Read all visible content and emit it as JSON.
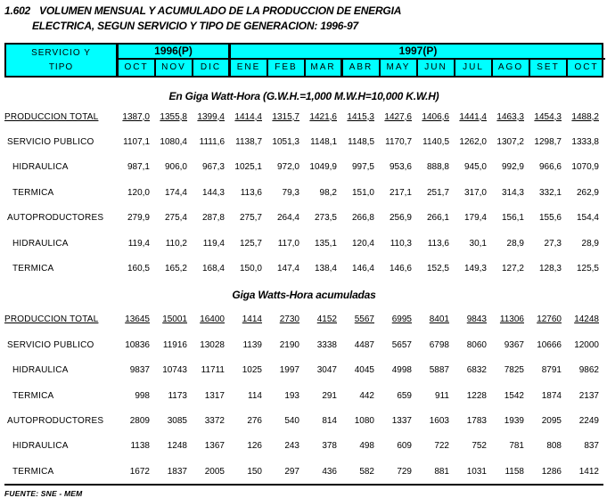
{
  "title": {
    "number": "1.602",
    "line1": "VOLUMEN MENSUAL Y ACUMULADO DE LA PRODUCCION DE ENERGIA",
    "line2": "ELECTRICA, SEGUN SERVICIO Y TIPO DE GENERACION: 1996-97"
  },
  "colors": {
    "header_bg": "#00FFFF",
    "border": "#000000",
    "text": "#000000"
  },
  "header": {
    "row_label_line1": "SERVICIO Y",
    "row_label_line2": "TIPO",
    "year_groups": [
      {
        "label": "1996(P)",
        "span": 3
      },
      {
        "label": "1997(P)",
        "span": 10
      }
    ],
    "months": [
      "OCT",
      "NOV",
      "DIC",
      "ENE",
      "FEB",
      "MAR",
      "ABR",
      "MAY",
      "JUN",
      "JUL",
      "AGO",
      "SET",
      "OCT"
    ],
    "thick_divider_after_month_index": [
      2,
      5
    ]
  },
  "sections": [
    {
      "title": "En Giga Watt-Hora (G.W.H.=1,000 M.W.H=10,000 K.W.H)",
      "rows": [
        {
          "label": "PRODUCCION TOTAL",
          "indent": 0,
          "underline": true,
          "values": [
            "1387,0",
            "1355,8",
            "1399,4",
            "1414,4",
            "1315,7",
            "1421,6",
            "1415,3",
            "1427,6",
            "1406,6",
            "1441,4",
            "1463,3",
            "1454,3",
            "1488,2"
          ]
        },
        {
          "label": "SERVICIO PUBLICO",
          "indent": 1,
          "underline": false,
          "values": [
            "1107,1",
            "1080,4",
            "1111,6",
            "1138,7",
            "1051,3",
            "1148,1",
            "1148,5",
            "1170,7",
            "1140,5",
            "1262,0",
            "1307,2",
            "1298,7",
            "1333,8"
          ]
        },
        {
          "label": "HIDRAULICA",
          "indent": 2,
          "underline": false,
          "values": [
            "987,1",
            "906,0",
            "967,3",
            "1025,1",
            "972,0",
            "1049,9",
            "997,5",
            "953,6",
            "888,8",
            "945,0",
            "992,9",
            "966,6",
            "1070,9"
          ]
        },
        {
          "label": "TERMICA",
          "indent": 2,
          "underline": false,
          "values": [
            "120,0",
            "174,4",
            "144,3",
            "113,6",
            "79,3",
            "98,2",
            "151,0",
            "217,1",
            "251,7",
            "317,0",
            "314,3",
            "332,1",
            "262,9"
          ]
        },
        {
          "label": "AUTOPRODUCTORES",
          "indent": 1,
          "underline": false,
          "values": [
            "279,9",
            "275,4",
            "287,8",
            "275,7",
            "264,4",
            "273,5",
            "266,8",
            "256,9",
            "266,1",
            "179,4",
            "156,1",
            "155,6",
            "154,4"
          ]
        },
        {
          "label": "HIDRAULICA",
          "indent": 2,
          "underline": false,
          "values": [
            "119,4",
            "110,2",
            "119,4",
            "125,7",
            "117,0",
            "135,1",
            "120,4",
            "110,3",
            "113,6",
            "30,1",
            "28,9",
            "27,3",
            "28,9"
          ]
        },
        {
          "label": "TERMICA",
          "indent": 2,
          "underline": false,
          "values": [
            "160,5",
            "165,2",
            "168,4",
            "150,0",
            "147,4",
            "138,4",
            "146,4",
            "146,6",
            "152,5",
            "149,3",
            "127,2",
            "128,3",
            "125,5"
          ]
        }
      ]
    },
    {
      "title": "Giga Watts-Hora acumuladas",
      "rows": [
        {
          "label": "PRODUCCION TOTAL",
          "indent": 0,
          "underline": true,
          "values": [
            "13645",
            "15001",
            "16400",
            "1414",
            "2730",
            "4152",
            "5567",
            "6995",
            "8401",
            "9843",
            "11306",
            "12760",
            "14248"
          ]
        },
        {
          "label": "SERVICIO PUBLICO",
          "indent": 1,
          "underline": false,
          "values": [
            "10836",
            "11916",
            "13028",
            "1139",
            "2190",
            "3338",
            "4487",
            "5657",
            "6798",
            "8060",
            "9367",
            "10666",
            "12000"
          ]
        },
        {
          "label": "HIDRAULICA",
          "indent": 2,
          "underline": false,
          "values": [
            "9837",
            "10743",
            "11711",
            "1025",
            "1997",
            "3047",
            "4045",
            "4998",
            "5887",
            "6832",
            "7825",
            "8791",
            "9862"
          ]
        },
        {
          "label": "TERMICA",
          "indent": 2,
          "underline": false,
          "values": [
            "998",
            "1173",
            "1317",
            "114",
            "193",
            "291",
            "442",
            "659",
            "911",
            "1228",
            "1542",
            "1874",
            "2137"
          ]
        },
        {
          "label": "AUTOPRODUCTORES",
          "indent": 1,
          "underline": false,
          "values": [
            "2809",
            "3085",
            "3372",
            "276",
            "540",
            "814",
            "1080",
            "1337",
            "1603",
            "1783",
            "1939",
            "2095",
            "2249"
          ]
        },
        {
          "label": "HIDRAULICA",
          "indent": 2,
          "underline": false,
          "values": [
            "1138",
            "1248",
            "1367",
            "126",
            "243",
            "378",
            "498",
            "609",
            "722",
            "752",
            "781",
            "808",
            "837"
          ]
        },
        {
          "label": "TERMICA",
          "indent": 2,
          "underline": false,
          "values": [
            "1672",
            "1837",
            "2005",
            "150",
            "297",
            "436",
            "582",
            "729",
            "881",
            "1031",
            "1158",
            "1286",
            "1412"
          ]
        }
      ]
    }
  ],
  "footer": {
    "source": "FUENTE: SNE - MEM"
  }
}
